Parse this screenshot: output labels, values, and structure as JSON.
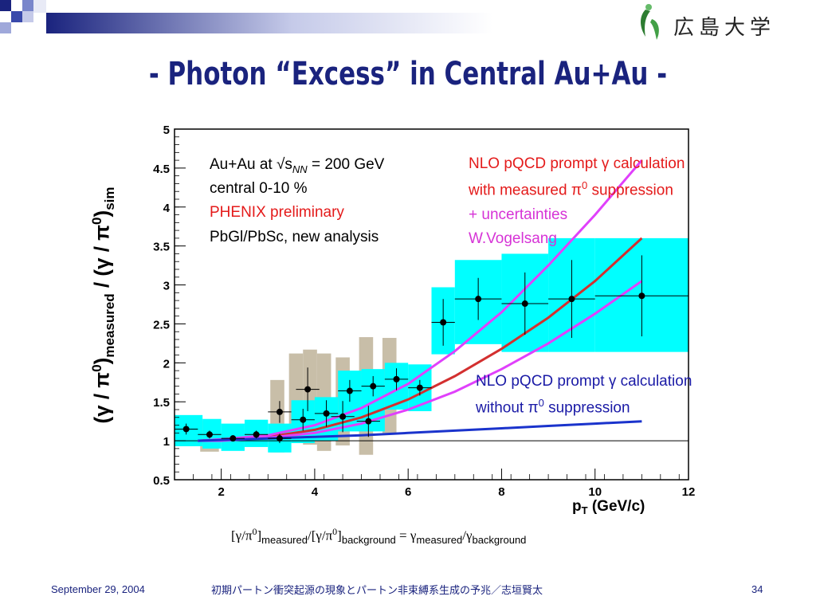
{
  "title": "- Photon “Excess” in Central Au+Au -",
  "logo": {
    "text": "広島大学",
    "icon_name": "hiroshima-university-logo"
  },
  "footer": {
    "date": "September 29, 2004",
    "text": "初期パートン衝突起源の現象とパートン非束縛系生成の予兆／志垣賢太",
    "page": "34"
  },
  "annotations": {
    "line1": "Au+Au at √s",
    "line1_sub": "NN",
    "line1_rest": " = 200 GeV",
    "line2": "central 0-10 %",
    "line3": "PHENIX preliminary",
    "line4": "PbGl/PbSc, new analysis",
    "nlo_supp_1": "NLO pQCD prompt γ calculation",
    "nlo_supp_2a": "with measured π",
    "nlo_supp_2b": "0",
    "nlo_supp_2c": " suppression",
    "nlo_supp_3": "+ uncertainties",
    "nlo_supp_4": "W.Vogelsang",
    "nlo_nosupp_1": "NLO pQCD prompt γ calculation",
    "nlo_nosupp_2a": "without π",
    "nlo_nosupp_2b": "0",
    "nlo_nosupp_2c": " suppression"
  },
  "formula": {
    "a": "[γ/π",
    "a_sup": "0",
    "a_close": "]",
    "a_sub": "measured",
    "slash": "/[γ/π",
    "b_sup": "0",
    "b_close": "]",
    "b_sub": "background",
    "eq": " = γ",
    "c_sub": "measured",
    "c_slash": "/γ",
    "d_sub": "background"
  },
  "ylabel": {
    "a": "(γ / π",
    "a_sup": "0",
    "a_close": ")",
    "a_sub": "measured",
    "mid": " / (γ / π",
    "b_sup": "0",
    "b_close": ")",
    "b_sub": "sim"
  },
  "colors": {
    "title": "#1a237e",
    "cyan_band": "#00ffff",
    "grey_band": "#c8bea8",
    "red_curve": "#d32f2f",
    "magenta_curve": "#e040fb",
    "blue_curve": "#1a33cc",
    "red_text": "#e41a1a",
    "magenta_text": "#d633d6",
    "blue_text": "#1a1aa6"
  },
  "chart_data": {
    "type": "scatter",
    "xlabel": "p_T (GeV/c)",
    "xlim": [
      1,
      12
    ],
    "ylim": [
      0.5,
      5
    ],
    "xticks": [
      "2",
      "4",
      "6",
      "8",
      "10",
      "12"
    ],
    "yticks": [
      "0.5",
      "1",
      "1.5",
      "2",
      "2.5",
      "3",
      "3.5",
      "4",
      "4.5",
      "5"
    ],
    "points": [
      {
        "x": 1.25,
        "y": 1.15,
        "xerr": 0.25,
        "yerr": 0.07
      },
      {
        "x": 1.75,
        "y": 1.08,
        "xerr": 0.25,
        "yerr": 0.05
      },
      {
        "x": 2.25,
        "y": 1.03,
        "xerr": 0.25,
        "yerr": 0.04
      },
      {
        "x": 2.75,
        "y": 1.08,
        "xerr": 0.25,
        "yerr": 0.05
      },
      {
        "x": 3.25,
        "y": 1.37,
        "xerr": 0.25,
        "yerr": 0.14
      },
      {
        "x": 3.25,
        "y": 1.03,
        "xerr": 0.25,
        "yerr": 0.06
      },
      {
        "x": 3.75,
        "y": 1.27,
        "xerr": 0.25,
        "yerr": 0.14
      },
      {
        "x": 3.85,
        "y": 1.66,
        "xerr": 0.25,
        "yerr": 0.28
      },
      {
        "x": 4.25,
        "y": 1.35,
        "xerr": 0.25,
        "yerr": 0.17
      },
      {
        "x": 4.6,
        "y": 1.31,
        "xerr": 0.25,
        "yerr": 0.2
      },
      {
        "x": 4.75,
        "y": 1.64,
        "xerr": 0.25,
        "yerr": 0.14
      },
      {
        "x": 5.15,
        "y": 1.25,
        "xerr": 0.25,
        "yerr": 0.2
      },
      {
        "x": 5.25,
        "y": 1.7,
        "xerr": 0.25,
        "yerr": 0.13
      },
      {
        "x": 5.75,
        "y": 1.79,
        "xerr": 0.25,
        "yerr": 0.14
      },
      {
        "x": 6.25,
        "y": 1.68,
        "xerr": 0.25,
        "yerr": 0.1
      },
      {
        "x": 6.75,
        "y": 2.52,
        "xerr": 0.25,
        "yerr": 0.3
      },
      {
        "x": 7.5,
        "y": 2.82,
        "xerr": 0.5,
        "yerr": 0.27
      },
      {
        "x": 8.5,
        "y": 2.76,
        "xerr": 0.5,
        "yerr": 0.4
      },
      {
        "x": 9.5,
        "y": 2.82,
        "xerr": 0.5,
        "yerr": 0.5
      },
      {
        "x": 11.0,
        "y": 2.86,
        "xerr": 1.0,
        "yerr": 0.52
      }
    ],
    "cyan_bands": [
      {
        "x0": 1.0,
        "x1": 1.6,
        "y0": 0.93,
        "y1": 1.33
      },
      {
        "x0": 1.6,
        "x1": 2.0,
        "y0": 0.9,
        "y1": 1.28
      },
      {
        "x0": 2.0,
        "x1": 2.5,
        "y0": 0.87,
        "y1": 1.22
      },
      {
        "x0": 2.5,
        "x1": 3.0,
        "y0": 0.92,
        "y1": 1.27
      },
      {
        "x0": 3.0,
        "x1": 3.5,
        "y0": 0.85,
        "y1": 1.22
      },
      {
        "x0": 3.5,
        "x1": 4.0,
        "y0": 0.97,
        "y1": 1.52
      },
      {
        "x0": 4.0,
        "x1": 4.5,
        "y0": 1.0,
        "y1": 1.56
      },
      {
        "x0": 4.5,
        "x1": 5.0,
        "y0": 1.12,
        "y1": 1.9
      },
      {
        "x0": 5.0,
        "x1": 5.5,
        "y0": 1.12,
        "y1": 1.92
      },
      {
        "x0": 5.5,
        "x1": 6.0,
        "y0": 1.4,
        "y1": 2.0
      },
      {
        "x0": 6.0,
        "x1": 6.5,
        "y0": 1.38,
        "y1": 1.98
      },
      {
        "x0": 6.5,
        "x1": 7.0,
        "y0": 2.11,
        "y1": 2.97
      },
      {
        "x0": 7.0,
        "x1": 8.0,
        "y0": 2.24,
        "y1": 3.32
      },
      {
        "x0": 8.0,
        "x1": 9.0,
        "y0": 2.14,
        "y1": 3.4
      },
      {
        "x0": 9.0,
        "x1": 10.0,
        "y0": 2.14,
        "y1": 3.6
      },
      {
        "x0": 10.0,
        "x1": 12.0,
        "y0": 2.14,
        "y1": 3.6
      }
    ],
    "grey_bands": [
      {
        "x0": 1.05,
        "x1": 1.45,
        "y0": 0.93,
        "y1": 1.3
      },
      {
        "x0": 1.55,
        "x1": 1.95,
        "y0": 0.86,
        "y1": 1.26
      },
      {
        "x0": 3.05,
        "x1": 3.35,
        "y0": 0.85,
        "y1": 1.78
      },
      {
        "x0": 3.45,
        "x1": 3.75,
        "y0": 1.07,
        "y1": 2.12
      },
      {
        "x0": 3.75,
        "x1": 4.05,
        "y0": 0.95,
        "y1": 2.17
      },
      {
        "x0": 4.05,
        "x1": 4.35,
        "y0": 0.87,
        "y1": 2.12
      },
      {
        "x0": 4.45,
        "x1": 4.75,
        "y0": 0.94,
        "y1": 2.07
      },
      {
        "x0": 4.95,
        "x1": 5.25,
        "y0": 0.82,
        "y1": 2.33
      },
      {
        "x0": 5.45,
        "x1": 5.75,
        "y0": 1.1,
        "y1": 2.32
      }
    ],
    "curves": [
      {
        "name": "NLO pQCD prompt γ with measured π0 suppression",
        "color": "red",
        "x": [
          1.5,
          2,
          3,
          4,
          5,
          6,
          7,
          8,
          9,
          10,
          11
        ],
        "y": [
          1.0,
          1.01,
          1.05,
          1.14,
          1.3,
          1.53,
          1.83,
          2.18,
          2.58,
          3.05,
          3.6
        ]
      },
      {
        "name": "+ uncertainties (upper)",
        "color": "magenta",
        "x": [
          1.5,
          2,
          3,
          4,
          5,
          6,
          7,
          8,
          9,
          10,
          11
        ],
        "y": [
          1.0,
          1.02,
          1.07,
          1.2,
          1.42,
          1.73,
          2.15,
          2.65,
          3.25,
          3.9,
          4.6
        ]
      },
      {
        "name": "+ uncertainties (lower)",
        "color": "magenta",
        "x": [
          1.5,
          2,
          3,
          4,
          5,
          6,
          7,
          8,
          9,
          10,
          11
        ],
        "y": [
          1.0,
          1.0,
          1.04,
          1.1,
          1.22,
          1.4,
          1.63,
          1.92,
          2.25,
          2.63,
          3.05
        ]
      },
      {
        "name": "NLO pQCD prompt γ without π0 suppression",
        "color": "blue",
        "x": [
          1.5,
          2,
          3,
          4,
          5,
          6,
          7,
          8,
          9,
          10,
          11
        ],
        "y": [
          1.0,
          1.01,
          1.03,
          1.05,
          1.07,
          1.1,
          1.13,
          1.16,
          1.19,
          1.22,
          1.25
        ]
      }
    ],
    "reference_line": 1
  }
}
